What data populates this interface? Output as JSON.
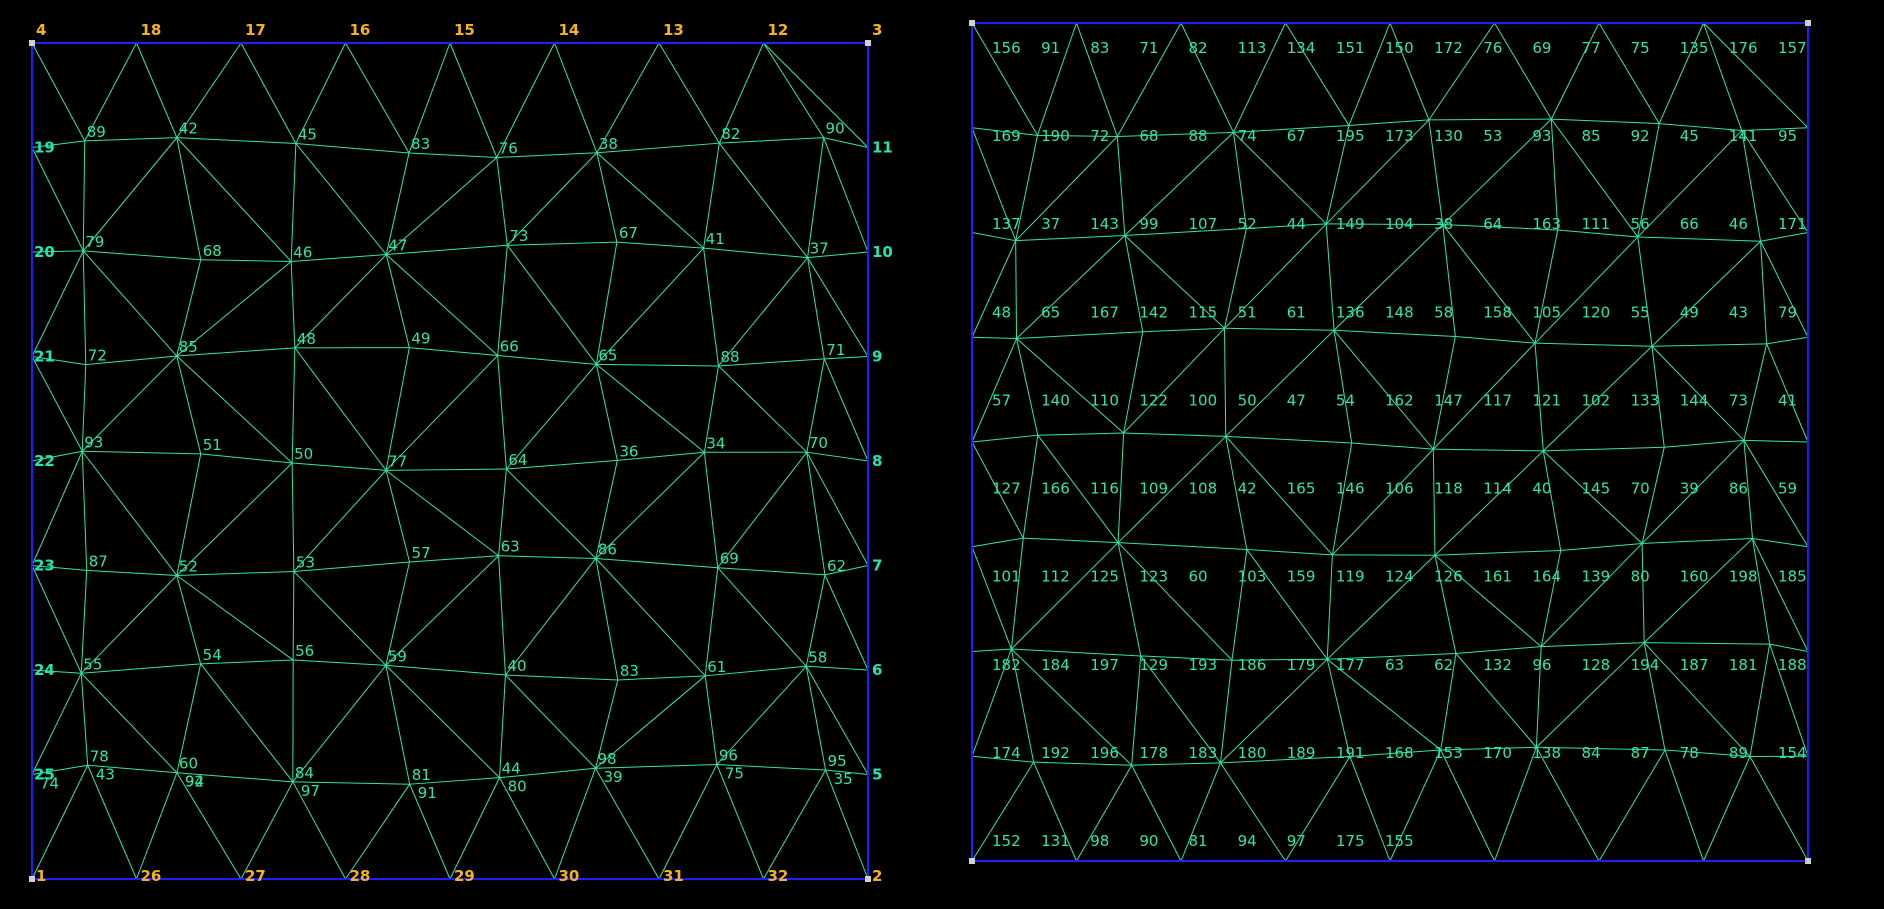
{
  "colors": {
    "background": "#000000",
    "boundary": "#1e1eff",
    "mesh": "#2ee8a0",
    "corner_node": "#f5b21d",
    "side_node": "#1ee6b4",
    "element_label": "#2ee8a0"
  },
  "left_panel": {
    "top_corner_labels": [
      "4",
      "18",
      "17",
      "16",
      "15",
      "14",
      "13",
      "12",
      "3"
    ],
    "bottom_corner_labels": [
      "1",
      "26",
      "27",
      "28",
      "29",
      "30",
      "31",
      "32",
      "2"
    ],
    "left_side_labels": [
      "19",
      "20",
      "21",
      "22",
      "23",
      "24",
      "25"
    ],
    "right_side_labels": [
      "11",
      "10",
      "9",
      "8",
      "7",
      "6",
      "5"
    ],
    "interior_labels": [
      "89",
      "42",
      "45",
      "83",
      "76",
      "38",
      "82",
      "90",
      "79",
      "68",
      "46",
      "47",
      "73",
      "67",
      "41",
      "37",
      "72",
      "85",
      "48",
      "49",
      "66",
      "65",
      "88",
      "71",
      "93",
      "51",
      "50",
      "77",
      "64",
      "36",
      "34",
      "70",
      "87",
      "52",
      "53",
      "57",
      "63",
      "86",
      "69",
      "62",
      "55",
      "54",
      "56",
      "59",
      "40",
      "83",
      "61",
      "58",
      "78",
      "60",
      "84",
      "81",
      "44",
      "98",
      "96",
      "95",
      "94",
      "97",
      "91",
      "80",
      "39",
      "75",
      "35",
      "74",
      "43",
      "92"
    ]
  },
  "right_panel": {
    "labels": [
      "156",
      "91",
      "83",
      "71",
      "82",
      "113",
      "134",
      "151",
      "150",
      "172",
      "76",
      "69",
      "77",
      "75",
      "135",
      "176",
      "157",
      "169",
      "190",
      "72",
      "68",
      "88",
      "74",
      "67",
      "195",
      "173",
      "130",
      "53",
      "93",
      "85",
      "92",
      "45",
      "141",
      "95",
      "137",
      "37",
      "143",
      "99",
      "107",
      "52",
      "44",
      "149",
      "104",
      "38",
      "64",
      "163",
      "111",
      "56",
      "66",
      "46",
      "171",
      "48",
      "65",
      "167",
      "142",
      "115",
      "51",
      "61",
      "136",
      "148",
      "58",
      "158",
      "105",
      "120",
      "55",
      "49",
      "43",
      "79",
      "57",
      "140",
      "110",
      "122",
      "100",
      "50",
      "47",
      "54",
      "162",
      "147",
      "117",
      "121",
      "102",
      "133",
      "144",
      "73",
      "41",
      "127",
      "166",
      "116",
      "109",
      "108",
      "42",
      "165",
      "146",
      "106",
      "118",
      "114",
      "40",
      "145",
      "70",
      "39",
      "86",
      "59",
      "101",
      "112",
      "125",
      "123",
      "60",
      "103",
      "159",
      "119",
      "124",
      "126",
      "161",
      "164",
      "139",
      "80",
      "160",
      "198",
      "185",
      "182",
      "184",
      "197",
      "129",
      "193",
      "186",
      "179",
      "177",
      "63",
      "62",
      "132",
      "96",
      "128",
      "194",
      "187",
      "181",
      "188",
      "174",
      "192",
      "196",
      "178",
      "183",
      "180",
      "189",
      "191",
      "168",
      "153",
      "170",
      "138",
      "84",
      "87",
      "78",
      "89",
      "154",
      "152",
      "131",
      "98",
      "90",
      "81",
      "94",
      "97",
      "175",
      "155"
    ]
  }
}
